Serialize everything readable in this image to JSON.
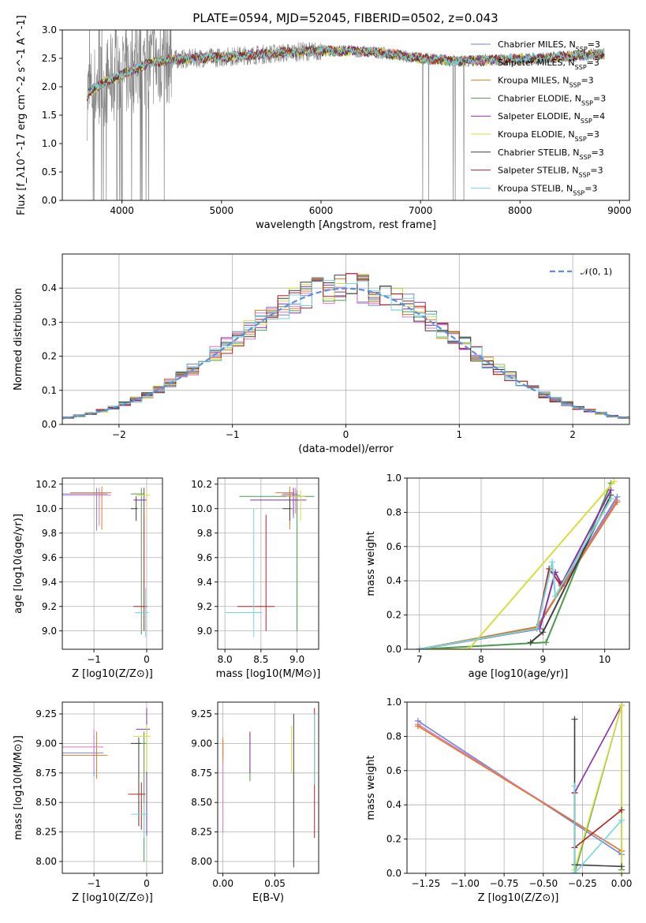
{
  "figure": {
    "title": "PLATE=0594, MJD=52045, FIBERID=0502, z=0.043"
  },
  "colors": [
    "#6f86d6",
    "#dd77cc",
    "#e07b1f",
    "#4d9a4d",
    "#8b2fa8",
    "#d8dd3a",
    "#3f3f3f",
    "#b22222",
    "#72d8de"
  ],
  "models": [
    "Chabrier MILES",
    "Salpeter MILES",
    "Kroupa MILES",
    "Chabrier ELODIE",
    "Salpeter ELODIE",
    "Kroupa ELODIE",
    "Chabrier STELIB",
    "Salpeter STELIB",
    "Kroupa STELIB"
  ],
  "chart_data": [
    {
      "id": "spectrum",
      "type": "line",
      "title": "PLATE=0594, MJD=52045, FIBERID=0502, z=0.043",
      "xlabel": "wavelength [Angstrom, rest frame]",
      "ylabel": "Flux [f_λ10^-17 erg cm^-2 s^-1 A^-1]",
      "xlim": [
        3400,
        9100
      ],
      "ylim": [
        0,
        3.0
      ],
      "xticks": [
        "4000",
        "5000",
        "6000",
        "7000",
        "8000",
        "9000"
      ],
      "yticks": [
        "0.0",
        "0.5",
        "1.0",
        "1.5",
        "2.0",
        "2.5",
        "3.0"
      ],
      "data_color": "#808080",
      "legend": {
        "placement": "top-right",
        "entries": [
          {
            "name": "Chabrier MILES",
            "nssp": "3"
          },
          {
            "name": "Salpeter MILES",
            "nssp": "3"
          },
          {
            "name": "Kroupa MILES",
            "nssp": "3"
          },
          {
            "name": "Chabrier ELODIE",
            "nssp": "3"
          },
          {
            "name": "Salpeter ELODIE",
            "nssp": "4"
          },
          {
            "name": "Kroupa ELODIE",
            "nssp": "3"
          },
          {
            "name": "Chabrier STELIB",
            "nssp": "3"
          },
          {
            "name": "Salpeter STELIB",
            "nssp": "3"
          },
          {
            "name": "Kroupa STELIB",
            "nssp": "3"
          }
        ]
      },
      "continuum_x": [
        3650,
        3700,
        3800,
        3900,
        4000,
        4100,
        4300,
        4500,
        4700,
        5000,
        5200,
        5500,
        5800,
        6000,
        6300,
        6600,
        7000,
        7400,
        7800,
        8200,
        8600,
        8850
      ],
      "continuum_y": [
        1.85,
        1.95,
        2.05,
        2.15,
        2.2,
        2.3,
        2.42,
        2.48,
        2.5,
        2.52,
        2.55,
        2.58,
        2.62,
        2.63,
        2.63,
        2.6,
        2.5,
        2.45,
        2.48,
        2.5,
        2.55,
        2.58
      ],
      "noise_region": [
        3650,
        4500
      ]
    },
    {
      "id": "residuals",
      "type": "line",
      "xlabel": "(data-model)/error",
      "ylabel": "Normed distribution",
      "xlim": [
        -2.5,
        2.5
      ],
      "ylim": [
        0,
        0.5
      ],
      "xticks": [
        "−2",
        "−1",
        "0",
        "1",
        "2"
      ],
      "yticks": [
        "0.0",
        "0.1",
        "0.2",
        "0.3",
        "0.4"
      ],
      "grid": true,
      "legend": {
        "placement": "top-right",
        "entries": [
          "𝒩(0, 1)"
        ]
      },
      "bin_width": 0.1,
      "reference_curve": "normal(0,1)"
    },
    {
      "id": "age_vs_Z",
      "type": "scatter",
      "xlabel": "Z [log10(Z/Z⊙)]",
      "ylabel": "age  [log10(age/yr)]",
      "xlim": [
        -1.6,
        0.3
      ],
      "ylim": [
        8.85,
        10.25
      ],
      "xticks": [
        "−1",
        "0"
      ],
      "yticks": [
        "9.0",
        "9.2",
        "9.4",
        "9.6",
        "9.8",
        "10.0",
        "10.2"
      ],
      "grid": true,
      "points": [
        {
          "x": -0.95,
          "y": 10.12,
          "xerr": 0.7,
          "yerr": [
            0.3,
            0.05
          ]
        },
        {
          "x": -0.9,
          "y": 10.11,
          "xerr": 0.75,
          "yerr": [
            0.25,
            0.06
          ]
        },
        {
          "x": -0.85,
          "y": 10.13,
          "xerr": 0.6,
          "yerr": [
            0.3,
            0.05
          ]
        },
        {
          "x": -0.1,
          "y": 10.12,
          "xerr": 0.2,
          "yerr": [
            1.15,
            0.05
          ]
        },
        {
          "x": -0.05,
          "y": 10.07,
          "xerr": 0.2,
          "yerr": [
            0.12,
            0.1
          ]
        },
        {
          "x": 0.0,
          "y": 10.11,
          "xerr": 0.2,
          "yerr": [
            0.2,
            0.05
          ]
        },
        {
          "x": -0.2,
          "y": 10.0,
          "xerr": 0.1,
          "yerr": [
            0.1,
            0.1
          ]
        },
        {
          "x": -0.05,
          "y": 9.2,
          "xerr": 0.2,
          "yerr": [
            0.2,
            0.75
          ]
        },
        {
          "x": -0.02,
          "y": 9.15,
          "xerr": 0.2,
          "yerr": [
            0.2,
            0.2
          ]
        }
      ]
    },
    {
      "id": "age_vs_mass",
      "type": "scatter",
      "xlabel": "mass [log10(M/M⊙)]",
      "ylabel": "",
      "xlim": [
        7.9,
        9.3
      ],
      "ylim": [
        8.85,
        10.25
      ],
      "xticks": [
        "8.0",
        "8.5",
        "9.0"
      ],
      "yticks": [
        "9.0",
        "9.2",
        "9.4",
        "9.6",
        "9.8",
        "10.0",
        "10.2"
      ],
      "grid": true,
      "points": [
        {
          "x": 8.95,
          "y": 10.12,
          "xerr": 0.15,
          "yerr": [
            0.2,
            0.05
          ]
        },
        {
          "x": 8.98,
          "y": 10.11,
          "xerr": 0.2,
          "yerr": [
            0.15,
            0.06
          ]
        },
        {
          "x": 8.9,
          "y": 10.13,
          "xerr": 0.2,
          "yerr": [
            0.3,
            0.05
          ]
        },
        {
          "x": 9.0,
          "y": 10.1,
          "xerr": 0.8,
          "yerr": [
            1.1,
            0.05
          ]
        },
        {
          "x": 8.95,
          "y": 10.07,
          "xerr": 0.6,
          "yerr": [
            0.12,
            0.1
          ]
        },
        {
          "x": 9.05,
          "y": 10.1,
          "xerr": 0.2,
          "yerr": [
            0.2,
            0.05
          ]
        },
        {
          "x": 8.9,
          "y": 10.0,
          "xerr": 0.1,
          "yerr": [
            0.1,
            0.1
          ]
        },
        {
          "x": 8.57,
          "y": 9.2,
          "xerr": 0.4,
          "yerr": [
            0.2,
            0.75
          ]
        },
        {
          "x": 8.4,
          "y": 9.15,
          "xerr": 0.4,
          "yerr": [
            0.2,
            0.85
          ]
        }
      ]
    },
    {
      "id": "mass_weight_vs_age",
      "type": "line",
      "xlabel": "age  [log10(age/yr)]",
      "ylabel": "mass weight",
      "xlim": [
        6.8,
        10.4
      ],
      "ylim": [
        0,
        1.0
      ],
      "xticks": [
        "7",
        "8",
        "9",
        "10"
      ],
      "yticks": [
        "0.0",
        "0.2",
        "0.4",
        "0.6",
        "0.8",
        "1.0"
      ],
      "grid": true,
      "series": [
        {
          "x": [
            7.0,
            8.9,
            10.2
          ],
          "y": [
            0.0,
            0.12,
            0.89
          ]
        },
        {
          "x": [
            7.0,
            8.9,
            10.2
          ],
          "y": [
            0.0,
            0.13,
            0.87
          ]
        },
        {
          "x": [
            7.0,
            8.9,
            10.2
          ],
          "y": [
            0.0,
            0.13,
            0.86
          ]
        },
        {
          "x": [
            7.0,
            9.05,
            10.1
          ],
          "y": [
            0.0,
            0.04,
            0.97
          ]
        },
        {
          "x": [
            7.0,
            8.95,
            9.2,
            9.3,
            10.1
          ],
          "y": [
            0.0,
            0.12,
            0.45,
            0.38,
            0.93
          ]
        },
        {
          "x": [
            7.0,
            7.8,
            10.15
          ],
          "y": [
            0.0,
            0.0,
            0.98
          ]
        },
        {
          "x": [
            8.8,
            9.0,
            10.1
          ],
          "y": [
            0.04,
            0.1,
            0.9
          ]
        },
        {
          "x": [
            7.0,
            8.9,
            9.1,
            9.3,
            10.1
          ],
          "y": [
            0.0,
            0.12,
            0.47,
            0.37,
            0.88
          ]
        },
        {
          "x": [
            7.0,
            8.9,
            9.15,
            9.2,
            10.1
          ],
          "y": [
            0.0,
            0.12,
            0.51,
            0.31,
            0.88
          ]
        }
      ]
    },
    {
      "id": "mass_vs_Z",
      "type": "scatter",
      "xlabel": "Z [log10(Z/Z⊙)]",
      "ylabel": "mass [log10(M/M⊙)]",
      "xlim": [
        -1.6,
        0.3
      ],
      "ylim": [
        7.9,
        9.35
      ],
      "xticks": [
        "−1",
        "0"
      ],
      "yticks": [
        "8.00",
        "8.25",
        "8.50",
        "8.75",
        "9.00",
        "9.25"
      ],
      "grid": true,
      "points": [
        {
          "x": -1.0,
          "y": 8.92,
          "xerr": 0.6,
          "yerr": [
            0.2,
            0.15
          ]
        },
        {
          "x": -1.0,
          "y": 8.97,
          "xerr": 0.6,
          "yerr": [
            0.2,
            0.15
          ]
        },
        {
          "x": -0.95,
          "y": 8.9,
          "xerr": 0.7,
          "yerr": [
            0.2,
            0.2
          ]
        },
        {
          "x": -0.05,
          "y": 9.0,
          "xerr": 0.2,
          "yerr": [
            1.0,
            0.1
          ]
        },
        {
          "x": 0.0,
          "y": 9.12,
          "xerr": 0.2,
          "yerr": [
            0.9,
            0.18
          ]
        },
        {
          "x": 0.0,
          "y": 9.06,
          "xerr": 0.25,
          "yerr": [
            0.3,
            0.1
          ]
        },
        {
          "x": -0.15,
          "y": 9.0,
          "xerr": 0.15,
          "yerr": [
            0.7,
            0.05
          ]
        },
        {
          "x": -0.1,
          "y": 8.57,
          "xerr": 0.25,
          "yerr": [
            0.3,
            0.1
          ]
        },
        {
          "x": -0.05,
          "y": 8.4,
          "xerr": 0.25,
          "yerr": [
            0.2,
            0.1
          ]
        }
      ]
    },
    {
      "id": "mass_vs_ebv",
      "type": "scatter",
      "xlabel": "E(B-V)",
      "ylabel": "",
      "xlim": [
        -0.005,
        0.092
      ],
      "ylim": [
        7.9,
        9.35
      ],
      "xticks": [
        "0.00",
        "0.05"
      ],
      "yticks": [
        "8.00",
        "8.25",
        "8.50",
        "8.75",
        "9.00",
        "9.25"
      ],
      "grid": true,
      "points": [
        {
          "x": 0.0,
          "y": 8.98,
          "yerr": [
            0.1,
            0.05
          ]
        },
        {
          "x": 0.0,
          "y": 8.5,
          "yerr": [
            0.25,
            0.5
          ]
        },
        {
          "x": 0.0,
          "y": 8.95,
          "yerr": [
            0.1,
            0.1
          ]
        },
        {
          "x": 0.026,
          "y": 8.88,
          "yerr": [
            0.2,
            0.2
          ]
        },
        {
          "x": 0.026,
          "y": 8.95,
          "yerr": [
            0.2,
            0.15
          ]
        },
        {
          "x": 0.066,
          "y": 8.95,
          "yerr": [
            0.2,
            0.2
          ]
        },
        {
          "x": 0.068,
          "y": 8.7,
          "yerr": [
            0.75,
            0.55
          ]
        },
        {
          "x": 0.088,
          "y": 8.8,
          "yerr": [
            0.6,
            0.5
          ]
        },
        {
          "x": 0.088,
          "y": 8.95,
          "yerr": [
            0.3,
            0.3
          ]
        }
      ]
    },
    {
      "id": "mass_weight_vs_Z",
      "type": "line",
      "xlabel": "Z [log10(Z/Z⊙)]",
      "ylabel": "mass weight",
      "xlim": [
        -1.37,
        0.05
      ],
      "ylim": [
        0,
        1.0
      ],
      "xticks": [
        "−1.25",
        "−1.00",
        "−0.75",
        "−0.50",
        "−0.25",
        "0.00"
      ],
      "yticks": [
        "0.0",
        "0.2",
        "0.4",
        "0.6",
        "0.8",
        "1.0"
      ],
      "grid": true,
      "series": [
        {
          "x": [
            -1.3,
            0.0
          ],
          "y": [
            0.89,
            0.11
          ]
        },
        {
          "x": [
            -1.3,
            0.0
          ],
          "y": [
            0.87,
            0.13
          ]
        },
        {
          "x": [
            -1.3,
            0.0
          ],
          "y": [
            0.86,
            0.13
          ]
        },
        {
          "x": [
            -0.3,
            0.0,
            0.0
          ],
          "y": [
            0.0,
            0.98,
            0.02
          ]
        },
        {
          "x": [
            -0.3,
            -0.3,
            0.0
          ],
          "y": [
            0.0,
            0.47,
            0.98
          ]
        },
        {
          "x": [
            -0.3,
            0.0,
            0.0
          ],
          "y": [
            0.02,
            0.98,
            0.0
          ]
        },
        {
          "x": [
            -0.3,
            -0.3,
            0.0
          ],
          "y": [
            0.9,
            0.05,
            0.04
          ]
        },
        {
          "x": [
            -0.3,
            -0.3,
            0.0
          ],
          "y": [
            0.47,
            0.15,
            0.37
          ]
        },
        {
          "x": [
            -0.3,
            -0.3,
            0.0
          ],
          "y": [
            0.51,
            0.0,
            0.31
          ]
        }
      ]
    }
  ]
}
